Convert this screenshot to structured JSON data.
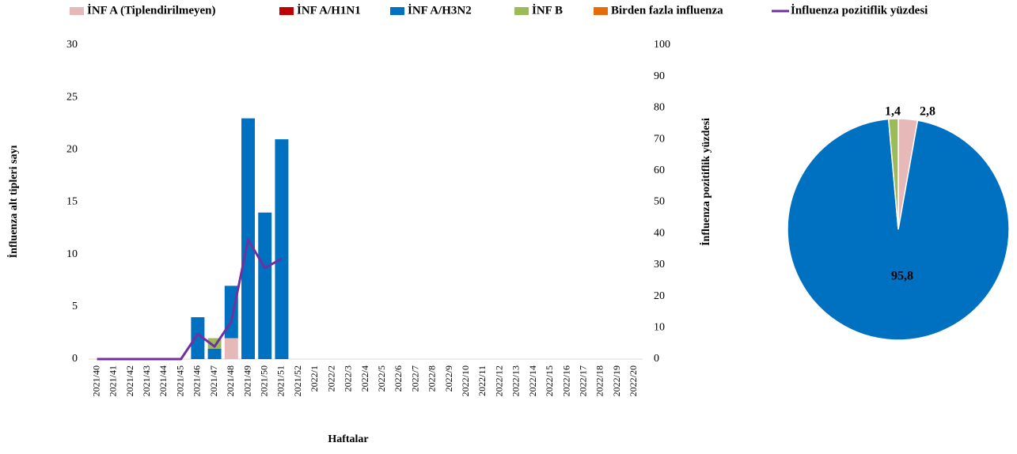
{
  "chart_data": [
    {
      "type": "combo",
      "legend_position": "top",
      "x_label": "Haftalar",
      "y_label": "İnfluenza alt tipleri sayı",
      "y2_label": "İnfluenza pozitiflik yüzdesi",
      "categories": [
        "2021/40",
        "2021/41",
        "2021/42",
        "2021/43",
        "2021/44",
        "2021/45",
        "2021/46",
        "2021/47",
        "2021/48",
        "2021/49",
        "2021/50",
        "2021/51",
        "2021/52",
        "2022/1",
        "2022/2",
        "2022/3",
        "2022/4",
        "2022/5",
        "2022/6",
        "2022/7",
        "2022/8",
        "2022/9",
        "2022/10",
        "2022/11",
        "2022/12",
        "2022/13",
        "2022/14",
        "2022/15",
        "2022/16",
        "2022/17",
        "2022/18",
        "2022/19",
        "2022/20"
      ],
      "ylim": [
        0,
        30
      ],
      "yticks": [
        0,
        5,
        10,
        15,
        20,
        25,
        30
      ],
      "y2lim": [
        0,
        100
      ],
      "y2ticks": [
        0,
        10,
        20,
        30,
        40,
        50,
        60,
        70,
        80,
        90,
        100
      ],
      "series": [
        {
          "name": "İNF A (Tiplendirilmeyen)",
          "type": "bar",
          "color": "#e6b9b8",
          "values": [
            0,
            0,
            0,
            0,
            0,
            0,
            0,
            0,
            2,
            0,
            0,
            0,
            null,
            null,
            null,
            null,
            null,
            null,
            null,
            null,
            null,
            null,
            null,
            null,
            null,
            null,
            null,
            null,
            null,
            null,
            null,
            null,
            null
          ]
        },
        {
          "name": "İNF A/H1N1",
          "type": "bar",
          "color": "#c00000",
          "values": [
            0,
            0,
            0,
            0,
            0,
            0,
            0,
            0,
            0,
            0,
            0,
            0,
            null,
            null,
            null,
            null,
            null,
            null,
            null,
            null,
            null,
            null,
            null,
            null,
            null,
            null,
            null,
            null,
            null,
            null,
            null,
            null,
            null
          ]
        },
        {
          "name": "İNF A/H3N2",
          "type": "bar",
          "color": "#0070c0",
          "values": [
            0,
            0,
            0,
            0,
            0,
            0,
            4,
            1,
            5,
            23,
            14,
            21,
            null,
            null,
            null,
            null,
            null,
            null,
            null,
            null,
            null,
            null,
            null,
            null,
            null,
            null,
            null,
            null,
            null,
            null,
            null,
            null,
            null
          ]
        },
        {
          "name": "İNF B",
          "type": "bar",
          "color": "#9bbb59",
          "values": [
            0,
            0,
            0,
            0,
            0,
            0,
            0,
            1,
            0,
            0,
            0,
            0,
            null,
            null,
            null,
            null,
            null,
            null,
            null,
            null,
            null,
            null,
            null,
            null,
            null,
            null,
            null,
            null,
            null,
            null,
            null,
            null,
            null
          ]
        },
        {
          "name": "Birden fazla influenza",
          "type": "bar",
          "color": "#e46c0a",
          "values": [
            0,
            0,
            0,
            0,
            0,
            0,
            0,
            0,
            0,
            0,
            0,
            0,
            null,
            null,
            null,
            null,
            null,
            null,
            null,
            null,
            null,
            null,
            null,
            null,
            null,
            null,
            null,
            null,
            null,
            null,
            null,
            null,
            null
          ]
        },
        {
          "name": "İnfluenza pozitiflik yüzdesi",
          "type": "line",
          "axis": "y2",
          "color": "#7030a0",
          "values": [
            0,
            0,
            0,
            0,
            0,
            0,
            8,
            4,
            12,
            38,
            29,
            32,
            null,
            null,
            null,
            null,
            null,
            null,
            null,
            null,
            null,
            null,
            null,
            null,
            null,
            null,
            null,
            null,
            null,
            null,
            null,
            null,
            null
          ]
        }
      ]
    },
    {
      "type": "pie",
      "values": [
        2.8,
        95.8,
        1.4
      ],
      "value_labels": [
        "2,8",
        "95,8",
        "1,4"
      ],
      "colors": [
        "#e6b9b8",
        "#0070c0",
        "#9bbb59"
      ]
    }
  ]
}
